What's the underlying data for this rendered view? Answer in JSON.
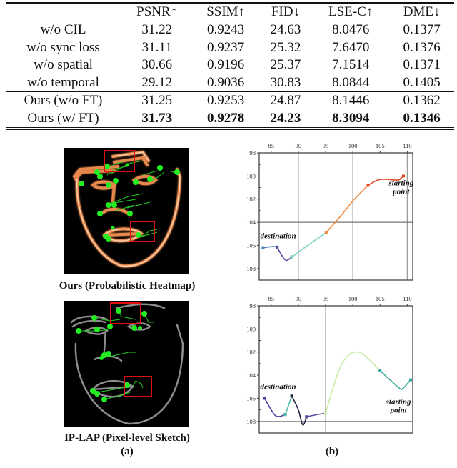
{
  "table": {
    "headers": [
      "",
      "PSNR↑",
      "SSIM↑",
      "FID↓",
      "LSE-C↑",
      "DME↓"
    ],
    "rows": [
      {
        "label": "w/o CIL",
        "values": [
          "31.22",
          "0.9243",
          "24.63",
          "8.0476",
          "0.1377"
        ]
      },
      {
        "label": "w/o sync loss",
        "values": [
          "31.11",
          "0.9237",
          "25.32",
          "7.6470",
          "0.1376"
        ]
      },
      {
        "label": "w/o spatial",
        "values": [
          "30.66",
          "0.9196",
          "25.37",
          "7.1514",
          "0.1371"
        ]
      },
      {
        "label": "w/o temporal",
        "values": [
          "29.12",
          "0.9036",
          "30.83",
          "8.0844",
          "0.1405"
        ]
      },
      {
        "label": "Ours (w/o FT)",
        "values": [
          "31.25",
          "0.9253",
          "24.87",
          "8.1446",
          "0.1362"
        ]
      },
      {
        "label": "Ours (w/ FT)",
        "values": [
          "31.73",
          "0.9278",
          "24.23",
          "8.3094",
          "0.1346"
        ],
        "bold": true
      }
    ]
  },
  "panel_a": {
    "top_caption": "Ours (Probabilistic Heatmap)",
    "bottom_caption": "IP-LAP (Pixel-level Sketch)",
    "label": "(a)",
    "colors": {
      "heatmap_line": "#f0a070",
      "sketch_line": "#9a9a9a",
      "landmark": "#22dd22",
      "box": "#e01010"
    }
  },
  "panel_b": {
    "label": "(b)",
    "annot_destination": "destination",
    "annot_start_1": "starting",
    "annot_start_2": "point"
  },
  "chart_data": [
    {
      "type": "line",
      "title": "Top trajectory (Ours)",
      "x_ticks": [
        85,
        90,
        95,
        100,
        105,
        110
      ],
      "y_ticks": [
        98,
        100,
        102,
        104,
        106,
        108
      ],
      "xlim": [
        82.8,
        111
      ],
      "ylim": [
        98,
        109
      ],
      "y_inverted": true,
      "x_axis_position": "top",
      "grid_x": [
        90,
        100,
        110
      ],
      "grid_y": [
        104
      ],
      "annotations": [
        {
          "text": "destination",
          "x": 83,
          "y": 105.4
        },
        {
          "text": "starting point",
          "x": 106,
          "y": 100.8
        }
      ],
      "series": [
        {
          "name": "seg1",
          "color": "#4a7fc0",
          "points": [
            [
              83.5,
              106.2
            ],
            [
              85.3,
              106.1
            ],
            [
              86.1,
              106.15
            ]
          ]
        },
        {
          "name": "seg2",
          "color": "#5b48a8",
          "points": [
            [
              86.1,
              106.15
            ],
            [
              87.0,
              106.9
            ],
            [
              87.8,
              107.3
            ],
            [
              88.8,
              107.0
            ]
          ]
        },
        {
          "name": "seg3",
          "color": "#7fd4c4",
          "points": [
            [
              88.8,
              107.0
            ],
            [
              92,
              105.9
            ],
            [
              95.1,
              104.9
            ]
          ]
        },
        {
          "name": "seg4",
          "color": "#f08a40",
          "points": [
            [
              95.1,
              104.9
            ],
            [
              97.7,
              103.5
            ],
            [
              100.3,
              102.0
            ],
            [
              102.8,
              100.8
            ]
          ]
        },
        {
          "name": "seg5",
          "color": "#e04a2a",
          "points": [
            [
              102.8,
              100.8
            ],
            [
              105.0,
              100.3
            ],
            [
              108.2,
              100.35
            ],
            [
              108.8,
              100.2
            ],
            [
              109.3,
              100.0
            ]
          ]
        }
      ]
    },
    {
      "type": "line",
      "title": "Bottom trajectory (IP-LAP)",
      "x_ticks": [
        85,
        90,
        95,
        100,
        105,
        110
      ],
      "y_ticks": [
        98,
        100,
        102,
        104,
        106,
        108
      ],
      "xlim": [
        82.8,
        111
      ],
      "ylim": [
        98,
        109
      ],
      "y_inverted": true,
      "x_axis_position": "top",
      "grid_x": [
        95
      ],
      "grid_y": [
        108
      ],
      "annotations": [
        {
          "text": "destination",
          "x": 83,
          "y": 105.2
        },
        {
          "text": "starting point",
          "x": 105.5,
          "y": 106.5
        }
      ],
      "series": [
        {
          "name": "seg1",
          "color": "#4a3fa0",
          "points": [
            [
              83.8,
              106.0
            ],
            [
              85.8,
              107.5
            ],
            [
              87.6,
              107.4
            ]
          ]
        },
        {
          "name": "seg2",
          "color": "#4fb8a8",
          "points": [
            [
              87.6,
              107.4
            ],
            [
              88.8,
              105.8
            ]
          ]
        },
        {
          "name": "seg3",
          "color": "#222244",
          "points": [
            [
              88.8,
              105.8
            ],
            [
              90.0,
              107.0
            ],
            [
              90.8,
              108.3
            ],
            [
              91.5,
              107.6
            ]
          ]
        },
        {
          "name": "seg4",
          "color": "#5b48a8",
          "points": [
            [
              91.5,
              107.6
            ],
            [
              93.5,
              107.4
            ],
            [
              95.0,
              107.3
            ]
          ]
        },
        {
          "name": "seg5",
          "color": "#c8eca8",
          "points": [
            [
              95.0,
              107.3
            ],
            [
              97.9,
              103.1
            ],
            [
              101.0,
              102.0
            ],
            [
              105.0,
              103.6
            ]
          ]
        },
        {
          "name": "seg6",
          "color": "#3aa89a",
          "points": [
            [
              105.0,
              103.6
            ],
            [
              108.5,
              105.1
            ],
            [
              109.3,
              105.1
            ],
            [
              110.6,
              104.4
            ]
          ]
        }
      ]
    }
  ]
}
